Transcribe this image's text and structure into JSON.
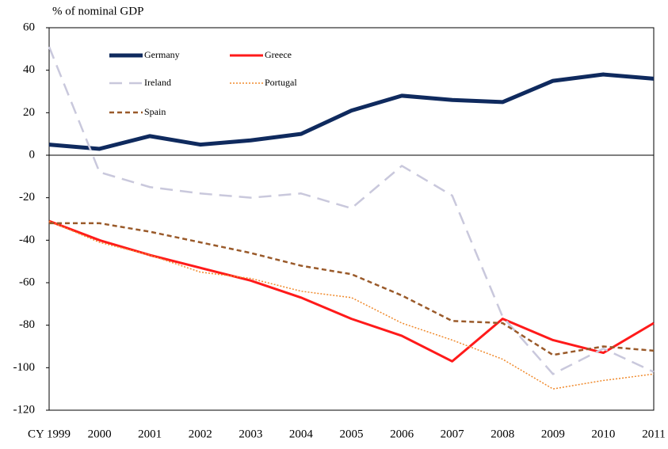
{
  "chart_data": {
    "type": "line",
    "y_axis_label": "% of nominal GDP",
    "categories": [
      "CY 1999",
      "2000",
      "2001",
      "2002",
      "2003",
      "2004",
      "2005",
      "2006",
      "2007",
      "2008",
      "2009",
      "2010",
      "2011"
    ],
    "series": [
      {
        "name": "Germany",
        "color": "#0f2a5e",
        "line_style": "solid",
        "values": [
          5,
          3,
          9,
          5,
          7,
          10,
          21,
          28,
          26,
          25,
          35,
          38,
          36
        ]
      },
      {
        "name": "Greece",
        "color": "#ff1a1a",
        "line_style": "solid",
        "values": [
          -31,
          -40,
          -47,
          -53,
          -59,
          -67,
          -77,
          -85,
          -97,
          -77,
          -87,
          -93,
          -79
        ]
      },
      {
        "name": "Ireland",
        "color": "#c9c8dc",
        "line_style": "dashed",
        "values": [
          51,
          -8,
          -15,
          -18,
          -20,
          -18,
          -25,
          -5,
          -19,
          -76,
          -103,
          -91,
          -102
        ]
      },
      {
        "name": "Portugal",
        "color": "#f08a2c",
        "line_style": "dotted",
        "values": [
          -31,
          -41,
          -47,
          -55,
          -58,
          -64,
          -67,
          -79,
          -87,
          -96,
          -110,
          -106,
          -103
        ]
      },
      {
        "name": "Spain",
        "color": "#9a5a2a",
        "line_style": "dashed",
        "values": [
          -32,
          -32,
          -36,
          -41,
          -46,
          -52,
          -56,
          -66,
          -78,
          -79,
          -94,
          -90,
          -92
        ]
      }
    ],
    "ylim": [
      -120,
      60
    ],
    "yticks": [
      -120,
      -100,
      -80,
      -60,
      -40,
      -20,
      0,
      20,
      40,
      60
    ],
    "grid": false
  }
}
